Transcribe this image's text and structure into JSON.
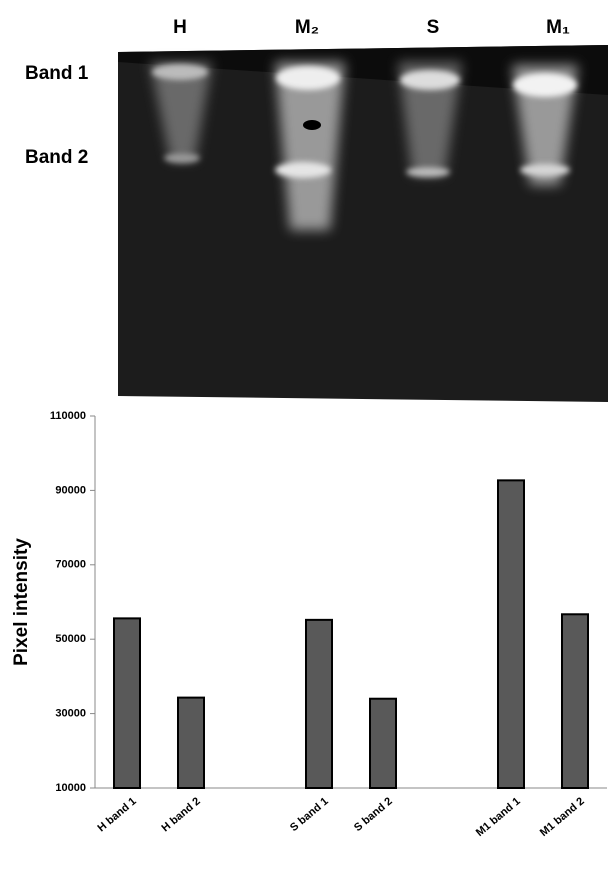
{
  "gel": {
    "lanes": [
      "H",
      "M₂",
      "S",
      "M₁"
    ],
    "bands": [
      "Band 1",
      "Band 2"
    ]
  },
  "chart_data": {
    "type": "bar",
    "y_label": "Pixel intensity",
    "categories": [
      "H band 1",
      "H band 2",
      null,
      "S band 1",
      "S band 2",
      null,
      "M1 band 1",
      "M1 band 2"
    ],
    "values": [
      55600,
      34300,
      null,
      55200,
      34000,
      null,
      92700,
      56700
    ],
    "color": "#595959",
    "ylim": [
      10000,
      110000
    ],
    "yticks": [
      10000,
      30000,
      50000,
      70000,
      90000,
      110000
    ]
  }
}
